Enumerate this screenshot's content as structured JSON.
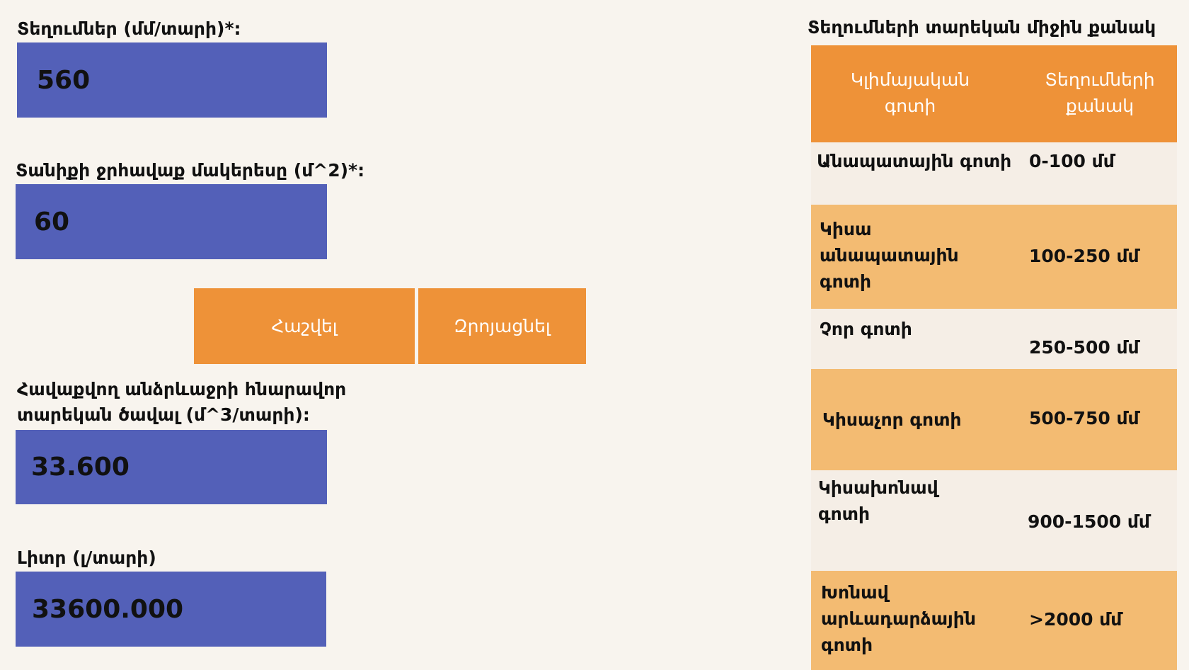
{
  "form": {
    "fields": [
      {
        "label": "Տեղումներ (մմ/տարի)*:",
        "value": "560"
      },
      {
        "label": "Տանիքի ջրհավաք մակերեսը (մ^2)*:",
        "value": "60"
      },
      {
        "label": "Հավաքվող անձրևաջրի հնարավոր տարեկան ծավալ (մ^3/տարի):",
        "value": "33.600"
      },
      {
        "label": "Լիտր (լ/տարի)",
        "value": "33600.000"
      }
    ],
    "buttons": [
      "Հաշվել",
      "Զրոյացնել"
    ]
  },
  "table": {
    "title": "Տեղումների տարեկան միջին քանակ",
    "headers": [
      "Կլիմայական գոտի",
      "Տեղումների քանակ"
    ],
    "rows": [
      [
        "Անապատային գոտի",
        "0-100 մմ"
      ],
      [
        "Կիսա անապատային գոտի",
        "100-250 մմ"
      ],
      [
        "Չոր գոտի",
        "250-500 մմ"
      ],
      [
        "Կիսաչոր գոտի",
        "500-750 մմ"
      ],
      [
        "Կիսախոնավ գոտի",
        "900-1500 մմ"
      ],
      [
        "Խոնավ արևադարձային գոտի",
        ">2000 մմ"
      ]
    ]
  }
}
